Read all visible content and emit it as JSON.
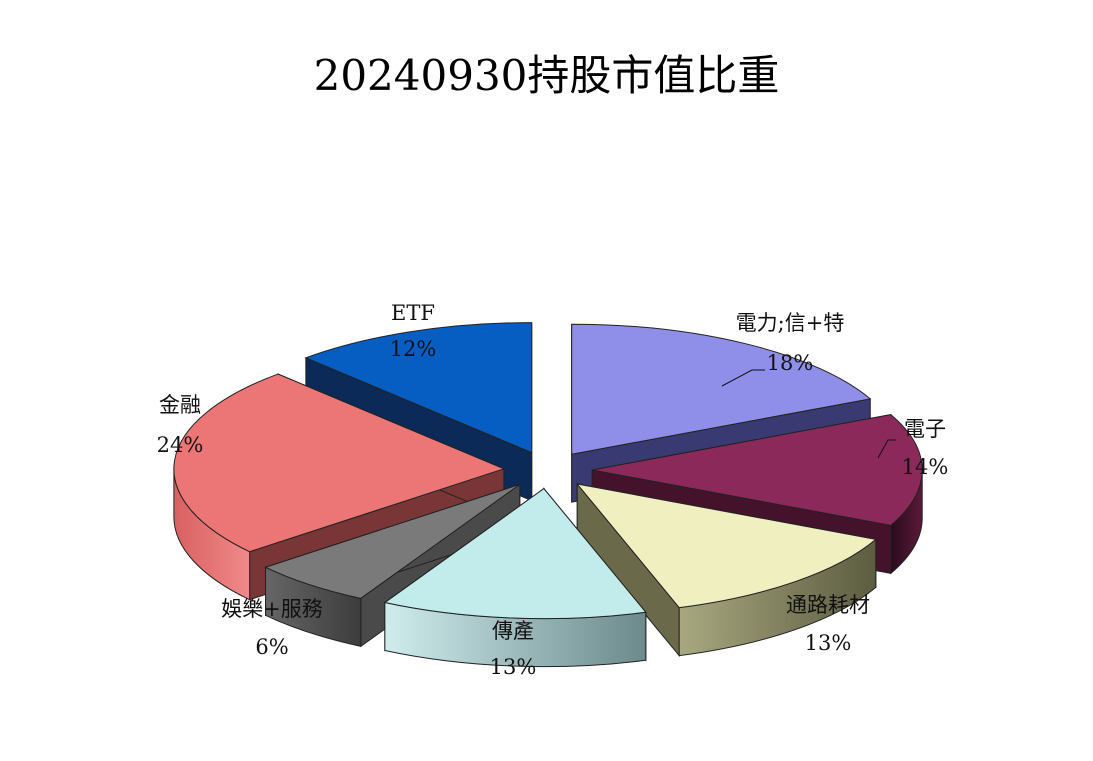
{
  "chart_data": {
    "type": "pie",
    "title": "20240930持股市值比重",
    "slices": [
      {
        "label": "電力;信+特",
        "value": 18,
        "value_label": "18%",
        "color": "#8f8fea",
        "side": "#3a3a72"
      },
      {
        "label": "電子",
        "value": 14,
        "value_label": "14%",
        "color": "#8b2a5a",
        "side": "#45122c"
      },
      {
        "label": "通路耗材",
        "value": 13,
        "value_label": "13%",
        "color": "#efefc0",
        "side": "#6a6a4a"
      },
      {
        "label": "傳產",
        "value": 13,
        "value_label": "13%",
        "color": "#c2ecec",
        "side": "#6f8d8f"
      },
      {
        "label": "娛樂+服務",
        "value": 6,
        "value_label": "6%",
        "color": "#7a7a7a",
        "side": "#4a4a4a"
      },
      {
        "label": "金融",
        "value": 24,
        "value_label": "24%",
        "color": "#ec7676",
        "side": "#7a3636"
      },
      {
        "label": "ETF",
        "value": 12,
        "value_label": "12%",
        "color": "#075ec2",
        "side": "#0b2a58"
      }
    ]
  }
}
